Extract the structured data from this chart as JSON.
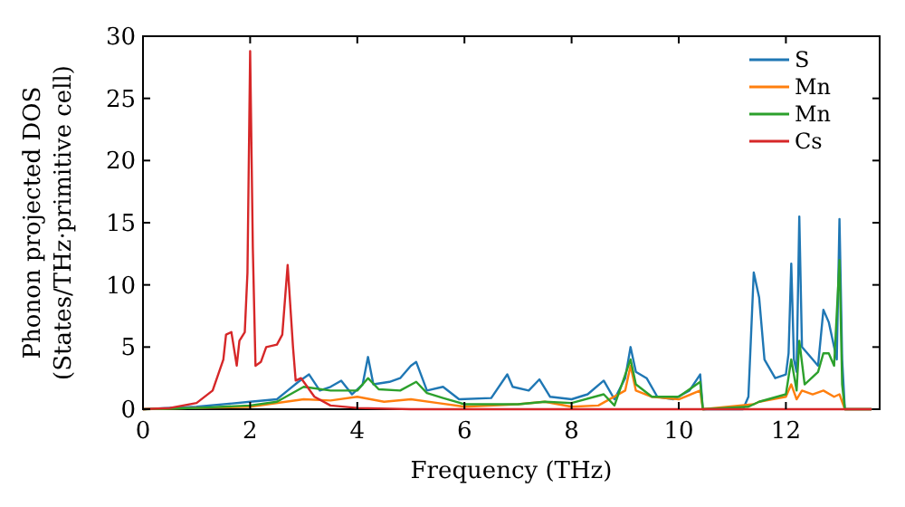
{
  "chart_data": {
    "type": "line",
    "xlabel": "Frequency (THz)",
    "ylabel": "Phonon projected DOS\n(States/THz·primitive cell)",
    "xlim": [
      0,
      13.75
    ],
    "ylim": [
      0,
      30
    ],
    "xticks": [
      0,
      2,
      4,
      6,
      8,
      10,
      12
    ],
    "yticks": [
      0,
      5,
      10,
      15,
      20,
      25,
      30
    ],
    "grid": false,
    "legend": "top right",
    "line_style": "solid",
    "series": [
      {
        "name": "S",
        "color": "#1f77b4",
        "x": [
          0,
          1,
          2,
          2.5,
          2.7,
          2.9,
          3.1,
          3.3,
          3.5,
          3.7,
          3.9,
          4.1,
          4.2,
          4.3,
          4.6,
          4.8,
          5.0,
          5.1,
          5.3,
          5.6,
          5.9,
          6.5,
          6.8,
          6.9,
          7.2,
          7.4,
          7.6,
          8.0,
          8.3,
          8.6,
          8.8,
          9.0,
          9.1,
          9.2,
          9.4,
          9.6,
          9.9,
          10.2,
          10.4,
          10.45,
          11.2,
          11.3,
          11.4,
          11.5,
          11.6,
          11.8,
          12.0,
          12.05,
          12.1,
          12.15,
          12.2,
          12.25,
          12.3,
          12.5,
          12.6,
          12.7,
          12.8,
          12.9,
          12.95,
          13.0,
          13.05,
          13.1,
          13.6
        ],
        "values": [
          0,
          0.2,
          0.6,
          0.8,
          1.5,
          2.2,
          2.8,
          1.5,
          1.8,
          2.3,
          1.2,
          2,
          4.2,
          2,
          2.2,
          2.5,
          3.5,
          3.8,
          1.5,
          1.8,
          0.8,
          0.9,
          2.8,
          1.8,
          1.5,
          2.4,
          1,
          0.8,
          1.2,
          2.3,
          0.8,
          2.5,
          5,
          3,
          2.5,
          1,
          0.8,
          1.5,
          2.8,
          0,
          0,
          1,
          11,
          9,
          4,
          2.5,
          2.8,
          4.5,
          11.7,
          4,
          3,
          15.5,
          5,
          4,
          3.5,
          8,
          7,
          5,
          4,
          15.3,
          4,
          0,
          0
        ]
      },
      {
        "name": "Mn",
        "color": "#ff7f0e",
        "x": [
          0,
          1,
          2,
          3,
          3.5,
          4,
          4.5,
          5,
          5.5,
          6,
          7,
          7.5,
          8,
          8.5,
          9.0,
          9.1,
          9.2,
          9.5,
          10,
          10.4,
          10.45,
          11.4,
          11.5,
          12.0,
          12.1,
          12.2,
          12.3,
          12.5,
          12.7,
          12.9,
          13.0,
          13.1,
          13.6
        ],
        "values": [
          0,
          0.1,
          0.2,
          0.8,
          0.7,
          1,
          0.6,
          0.8,
          0.5,
          0.2,
          0.4,
          0.6,
          0.2,
          0.3,
          1.5,
          3.5,
          1.5,
          1,
          0.8,
          1.5,
          0,
          0.4,
          0.6,
          1.0,
          2,
          0.8,
          1.5,
          1.2,
          1.5,
          1.0,
          1.2,
          0,
          0
        ]
      },
      {
        "name": "Mn",
        "color": "#2ca02c",
        "x": [
          0,
          1,
          2,
          2.5,
          3,
          3.5,
          4,
          4.2,
          4.4,
          4.8,
          5.1,
          5.3,
          5.6,
          6,
          7,
          7.5,
          8,
          8.6,
          8.8,
          9.1,
          9.2,
          9.5,
          10,
          10.4,
          10.45,
          11.3,
          11.5,
          12.0,
          12.1,
          12.2,
          12.25,
          12.35,
          12.6,
          12.7,
          12.8,
          12.9,
          13.0,
          13.05,
          13.1,
          13.6
        ],
        "values": [
          0,
          0.1,
          0.3,
          0.6,
          1.8,
          1.5,
          1.5,
          2.5,
          1.6,
          1.5,
          2.2,
          1.3,
          0.9,
          0.4,
          0.4,
          0.6,
          0.5,
          1.2,
          0.3,
          4,
          2,
          1,
          1,
          2.2,
          0,
          0.2,
          0.6,
          1.2,
          4,
          1.5,
          5.5,
          2,
          3,
          4.5,
          4.5,
          3.5,
          12,
          2,
          0,
          0
        ]
      },
      {
        "name": "Cs",
        "color": "#d62728",
        "x": [
          0,
          0.5,
          1,
          1.3,
          1.5,
          1.55,
          1.65,
          1.75,
          1.8,
          1.9,
          1.95,
          2.0,
          2.05,
          2.1,
          2.2,
          2.3,
          2.5,
          2.6,
          2.7,
          2.8,
          2.85,
          2.95,
          3.0,
          3.2,
          3.5,
          4,
          5,
          13.6
        ],
        "values": [
          0,
          0.1,
          0.5,
          1.5,
          4,
          6,
          6.2,
          3.5,
          5.5,
          6.2,
          11,
          28.8,
          13,
          3.5,
          3.8,
          5,
          5.2,
          6,
          11.6,
          5,
          2.3,
          2.5,
          2.2,
          1,
          0.3,
          0.1,
          0,
          0
        ]
      }
    ]
  }
}
